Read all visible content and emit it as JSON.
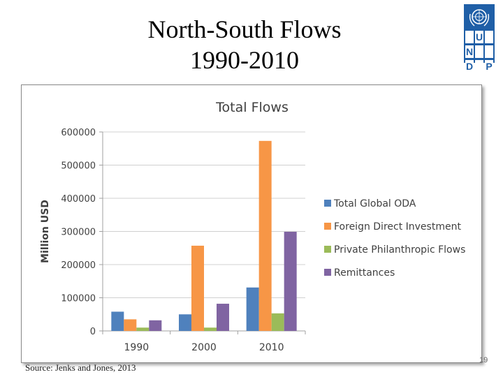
{
  "slide": {
    "title_line1": "North-South Flows",
    "title_line2": "1990-2010",
    "source": "Source: Jenks and Jones, 2013",
    "page_number": "19"
  },
  "logo": {
    "letters": [
      "U",
      "N",
      "D",
      "P"
    ],
    "color": "#1f5fa7"
  },
  "chart_data": {
    "type": "bar",
    "title": "Total Flows",
    "xlabel": "",
    "ylabel": "Million USD",
    "categories": [
      "1990",
      "2000",
      "2010"
    ],
    "ylim": [
      0,
      600000
    ],
    "yticks": [
      "0",
      "100000",
      "200000",
      "300000",
      "400000",
      "500000",
      "600000"
    ],
    "grid": true,
    "legend_position": "right",
    "series": [
      {
        "name": "Total Global ODA",
        "color": "#4f81bd",
        "values": [
          58000,
          50000,
          131000
        ]
      },
      {
        "name": "Foreign Direct Investment",
        "color": "#f79646",
        "values": [
          35000,
          257000,
          573000
        ]
      },
      {
        "name": "Private Philanthropic Flows",
        "color": "#9bbb59",
        "values": [
          10000,
          10000,
          53000
        ]
      },
      {
        "name": "Remittances",
        "color": "#8064a2",
        "values": [
          32000,
          82000,
          299000
        ]
      }
    ]
  }
}
